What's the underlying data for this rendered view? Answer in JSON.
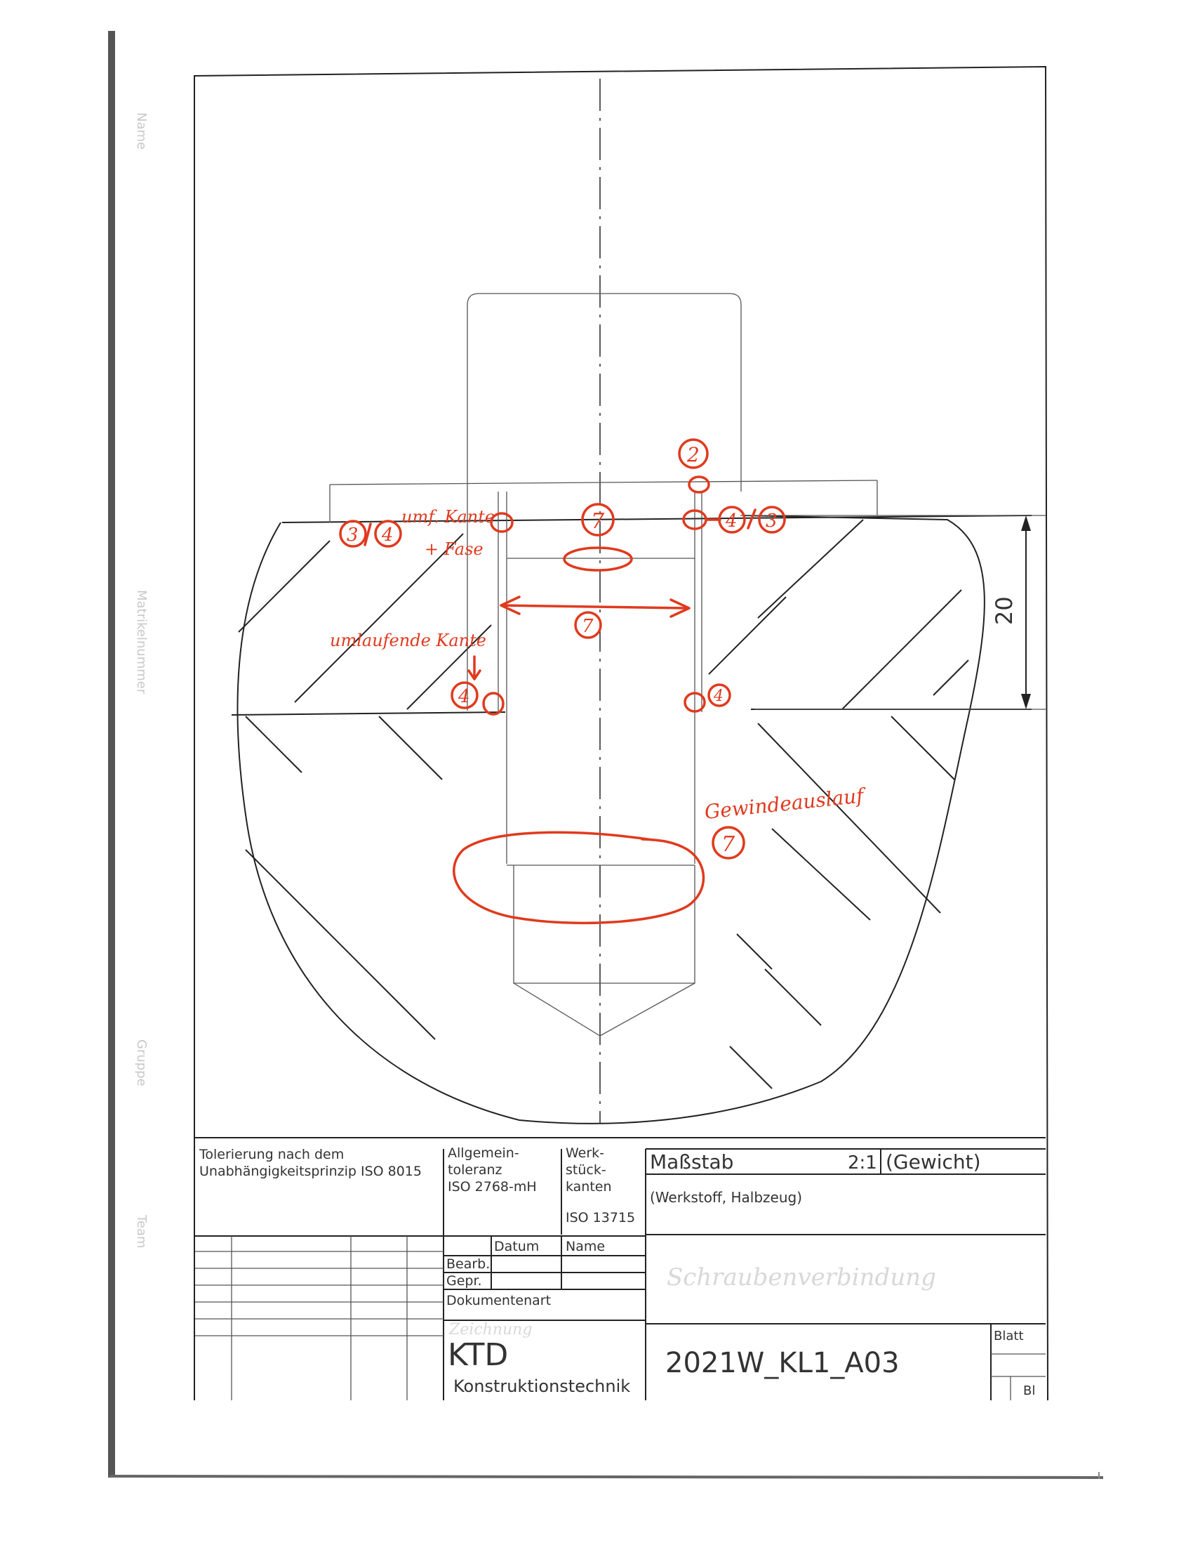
{
  "drawing": {
    "dimension_value": "20"
  },
  "annotations": {
    "bubble_2": "2",
    "bubble_3_left": "3",
    "bubble_4_left": "4",
    "label_umf_kante": "umf. Kante",
    "label_fase": "+ Fase",
    "bubble_7_top": "7",
    "bubble_7_mid": "7",
    "bubble_4_right_top": "4",
    "bubble_3_right": "3",
    "label_umlaufende_kante": "umlaufende Kante",
    "bubble_4_left_bottom": "4",
    "bubble_4_right_bottom": "4",
    "label_gewindeauslauf": "Gewindeauslauf",
    "bubble_7_bottom": "7"
  },
  "side_labels": {
    "name": "Name",
    "matrikelnummer": "Matrikelnummer",
    "gruppe": "Gruppe",
    "team": "Team"
  },
  "title_block": {
    "tolerancing_line1": "Tolerierung nach dem",
    "tolerancing_line2": "Unabhängigkeitsprinzip ISO 8015",
    "general_tol_line1": "Allgemein-",
    "general_tol_line2": "toleranz",
    "general_tol_line3": "ISO 2768-mH",
    "edges_line1": "Werk-",
    "edges_line2": "stück-",
    "edges_line3": "kanten",
    "edges_line4": "ISO 13715",
    "scale_label": "Maßstab",
    "scale_value": "2:1",
    "weight_label": "(Gewicht)",
    "material_label": "(Werkstoff, Halbzeug)",
    "col_datum": "Datum",
    "col_name": "Name",
    "row_bearb": "Bearb.",
    "row_gepr": "Gepr.",
    "document_type_label": "Dokumentenart",
    "faint_title": "Schraubenverbindung",
    "faint_doctype": "Zeichnung",
    "logo": "KTD",
    "company": "Konstruktionstechnik",
    "drawing_number": "2021W_KL1_A03",
    "sheet_label": "Blatt",
    "sheet_count_label": "Bl"
  }
}
